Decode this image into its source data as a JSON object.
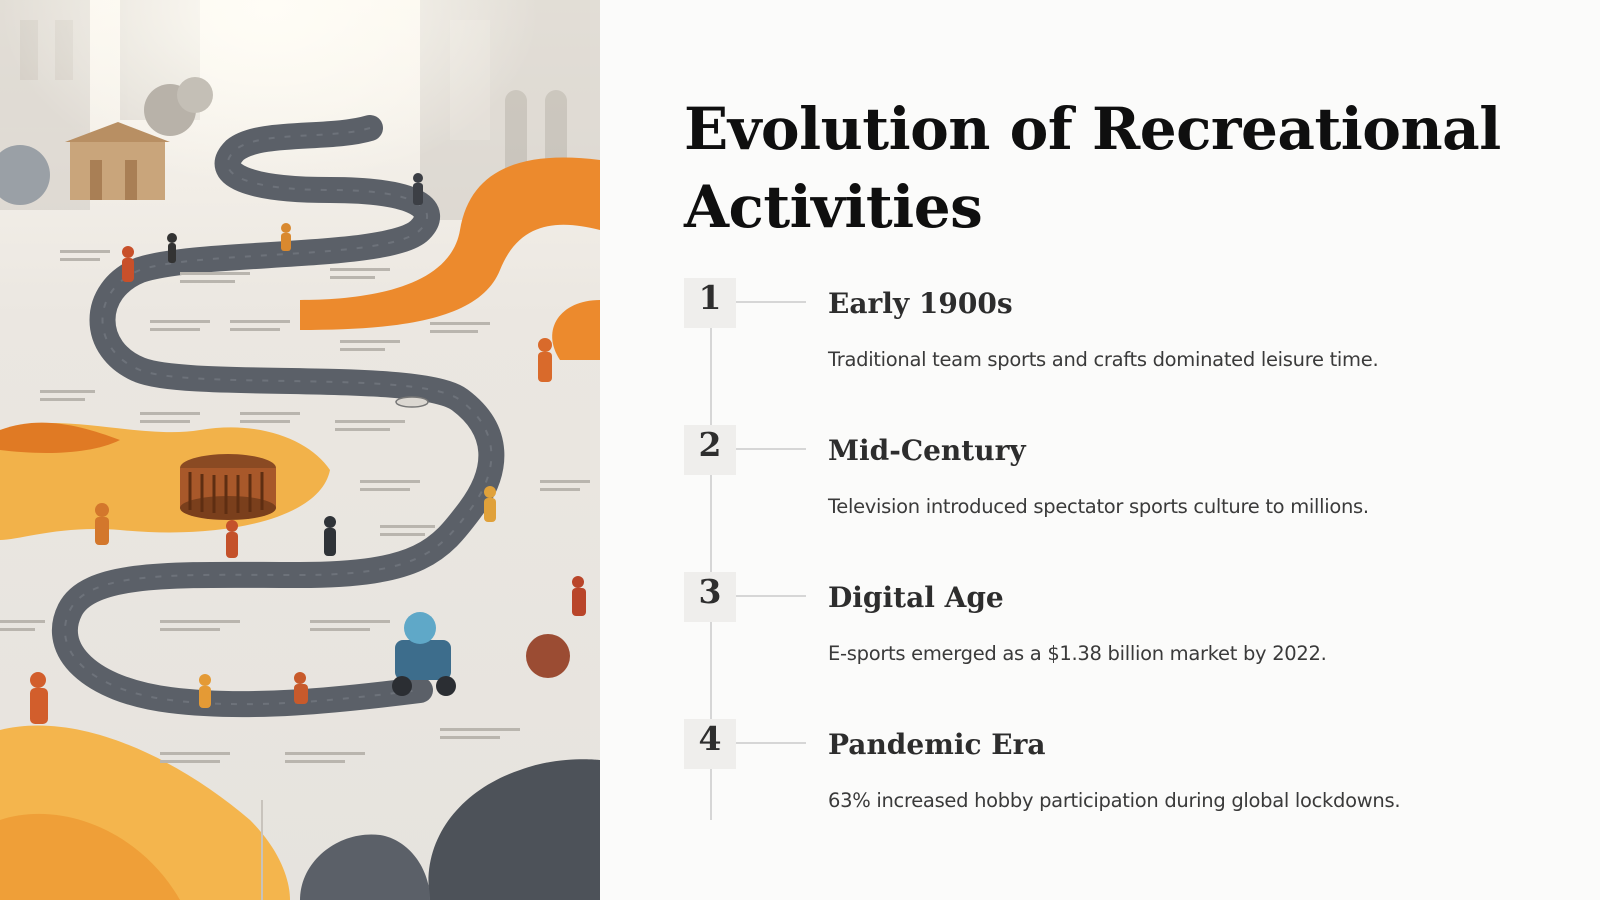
{
  "slide": {
    "title": "Evolution of Recreational Activities",
    "illustration": {
      "icon": "winding-timeline-path-illustration",
      "colors": {
        "path": "#5b6068",
        "accent": "#ec8a2d",
        "sand": "#f2b24a",
        "background": "#eceae6"
      }
    },
    "timeline": [
      {
        "number": "1",
        "heading": "Early 1900s",
        "description": "Traditional team sports and crafts dominated leisure time."
      },
      {
        "number": "2",
        "heading": "Mid-Century",
        "description": "Television introduced spectator sports culture to millions."
      },
      {
        "number": "3",
        "heading": "Digital Age",
        "description": "E-sports emerged as a $1.38 billion market by 2022."
      },
      {
        "number": "4",
        "heading": "Pandemic Era",
        "description": "63% increased hobby participation during global lockdowns."
      }
    ],
    "colors": {
      "background": "#fbfbfa",
      "title": "#0f0f0f",
      "number_box": "#efeeec",
      "lines": "#d6d6d6"
    }
  }
}
